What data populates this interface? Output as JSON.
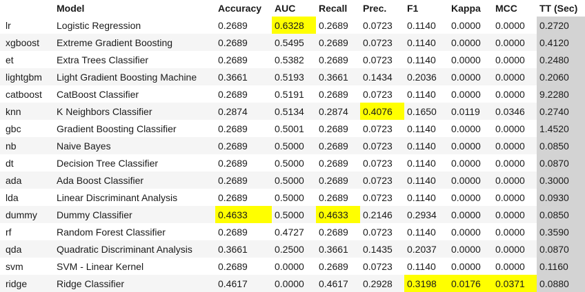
{
  "table": {
    "headers": [
      "",
      "Model",
      "Accuracy",
      "AUC",
      "Recall",
      "Prec.",
      "F1",
      "Kappa",
      "MCC",
      "TT (Sec)"
    ],
    "rows": [
      [
        "lr",
        "Logistic Regression",
        "0.2689",
        "0.6328",
        "0.2689",
        "0.0723",
        "0.1140",
        "0.0000",
        "0.0000",
        "0.2720"
      ],
      [
        "xgboost",
        "Extreme Gradient Boosting",
        "0.2689",
        "0.5495",
        "0.2689",
        "0.0723",
        "0.1140",
        "0.0000",
        "0.0000",
        "0.4120"
      ],
      [
        "et",
        "Extra Trees Classifier",
        "0.2689",
        "0.5382",
        "0.2689",
        "0.0723",
        "0.1140",
        "0.0000",
        "0.0000",
        "0.2480"
      ],
      [
        "lightgbm",
        "Light Gradient Boosting Machine",
        "0.3661",
        "0.5193",
        "0.3661",
        "0.1434",
        "0.2036",
        "0.0000",
        "0.0000",
        "0.2060"
      ],
      [
        "catboost",
        "CatBoost Classifier",
        "0.2689",
        "0.5191",
        "0.2689",
        "0.0723",
        "0.1140",
        "0.0000",
        "0.0000",
        "9.2280"
      ],
      [
        "knn",
        "K Neighbors Classifier",
        "0.2874",
        "0.5134",
        "0.2874",
        "0.4076",
        "0.1650",
        "0.0119",
        "0.0346",
        "0.2740"
      ],
      [
        "gbc",
        "Gradient Boosting Classifier",
        "0.2689",
        "0.5001",
        "0.2689",
        "0.0723",
        "0.1140",
        "0.0000",
        "0.0000",
        "1.4520"
      ],
      [
        "nb",
        "Naive Bayes",
        "0.2689",
        "0.5000",
        "0.2689",
        "0.0723",
        "0.1140",
        "0.0000",
        "0.0000",
        "0.0850"
      ],
      [
        "dt",
        "Decision Tree Classifier",
        "0.2689",
        "0.5000",
        "0.2689",
        "0.0723",
        "0.1140",
        "0.0000",
        "0.0000",
        "0.0870"
      ],
      [
        "ada",
        "Ada Boost Classifier",
        "0.2689",
        "0.5000",
        "0.2689",
        "0.0723",
        "0.1140",
        "0.0000",
        "0.0000",
        "0.3000"
      ],
      [
        "lda",
        "Linear Discriminant Analysis",
        "0.2689",
        "0.5000",
        "0.2689",
        "0.0723",
        "0.1140",
        "0.0000",
        "0.0000",
        "0.0930"
      ],
      [
        "dummy",
        "Dummy Classifier",
        "0.4633",
        "0.5000",
        "0.4633",
        "0.2146",
        "0.2934",
        "0.0000",
        "0.0000",
        "0.0850"
      ],
      [
        "rf",
        "Random Forest Classifier",
        "0.2689",
        "0.4727",
        "0.2689",
        "0.0723",
        "0.1140",
        "0.0000",
        "0.0000",
        "0.3590"
      ],
      [
        "qda",
        "Quadratic Discriminant Analysis",
        "0.3661",
        "0.2500",
        "0.3661",
        "0.1435",
        "0.2037",
        "0.0000",
        "0.0000",
        "0.0870"
      ],
      [
        "svm",
        "SVM - Linear Kernel",
        "0.2689",
        "0.0000",
        "0.2689",
        "0.0723",
        "0.1140",
        "0.0000",
        "0.0000",
        "0.1160"
      ],
      [
        "ridge",
        "Ridge Classifier",
        "0.4617",
        "0.0000",
        "0.4617",
        "0.2928",
        "0.3198",
        "0.0176",
        "0.0371",
        "0.0880"
      ]
    ]
  },
  "colors": {
    "highlight": "#ffff00",
    "tt_column": "#d3d3d3",
    "stripe": "#f5f5f5"
  }
}
